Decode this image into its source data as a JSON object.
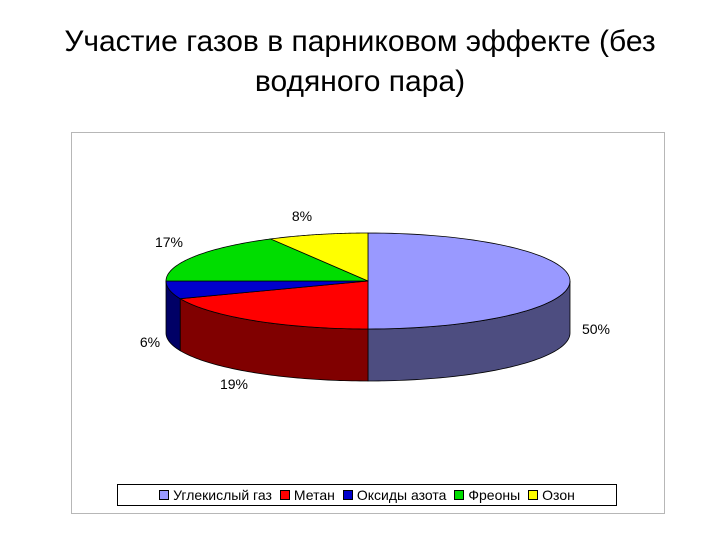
{
  "title": {
    "line1": "Участие газов в парниковом эффекте (без",
    "line2": "водяного пара)"
  },
  "chart_data": {
    "type": "pie",
    "title": "Участие газов в парниковом эффекте (без водяного пара)",
    "categories": [
      "Углекислый газ",
      "Метан",
      "Оксиды азота",
      "Фреоны",
      "Озон"
    ],
    "values": [
      50,
      19,
      6,
      17,
      8
    ],
    "data_labels": [
      "50%",
      "19%",
      "6%",
      "17%",
      "8%"
    ],
    "colors": [
      "#9999ff",
      "#ff0000",
      "#0000cc",
      "#00dd00",
      "#ffff00"
    ],
    "side_colors": [
      "#4d4d80",
      "#800000",
      "#000066",
      "#006e00",
      "#808000"
    ],
    "style": "3d",
    "legend_position": "bottom"
  }
}
